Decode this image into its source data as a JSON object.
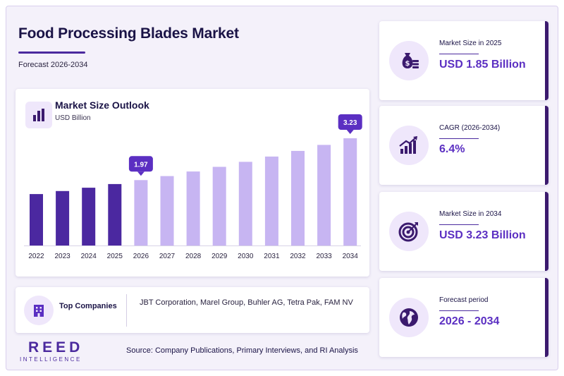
{
  "header": {
    "title": "Food Processing Blades Market",
    "subtitle": "Forecast 2026-2034"
  },
  "chart_card": {
    "title": "Market Size Outlook",
    "unit": "USD Billion",
    "icon": "bar-chart-icon"
  },
  "chart_data": {
    "type": "bar",
    "title": "Market Size Outlook",
    "ylabel": "USD Billion",
    "categories": [
      "2022",
      "2023",
      "2024",
      "2025",
      "2026",
      "2027",
      "2028",
      "2029",
      "2030",
      "2031",
      "2032",
      "2033",
      "2034"
    ],
    "values": [
      1.55,
      1.64,
      1.74,
      1.85,
      1.97,
      2.09,
      2.23,
      2.37,
      2.52,
      2.68,
      2.85,
      3.03,
      3.23
    ],
    "data_labels": [
      {
        "category": "2026",
        "text": "1.97"
      },
      {
        "category": "2034",
        "text": "3.23"
      }
    ],
    "historical_until": "2025",
    "colors": {
      "historical": "#4b28a0",
      "forecast": "#c7b5f2",
      "label_bg": "#5b2fc2"
    },
    "grid": false,
    "legend": "none"
  },
  "companies": {
    "label": "Top Companies",
    "list": "JBT Corporation, Marel Group, Buhler AG, Tetra Pak, FAM NV",
    "icon": "building-icon"
  },
  "kpis": [
    {
      "label": "Market Size in 2025",
      "value": "USD 1.85 Billion",
      "icon": "money-bag-icon"
    },
    {
      "label": "CAGR (2026-2034)",
      "value": "6.4%",
      "icon": "growth-chart-icon"
    },
    {
      "label": "Market Size in 2034",
      "value": "USD 3.23 Billion",
      "icon": "target-icon"
    },
    {
      "label": "Forecast period",
      "value": "2026 - 2034",
      "icon": "globe-icon"
    }
  ],
  "footer": {
    "logo_main": "REED",
    "logo_sub": "INTELLIGENCE",
    "source": "Source: Company Publications, Primary Interviews, and RI Analysis"
  },
  "colors": {
    "accent": "#5b2fc2",
    "dark": "#1a1346",
    "icon_bg": "#efe7fb"
  }
}
